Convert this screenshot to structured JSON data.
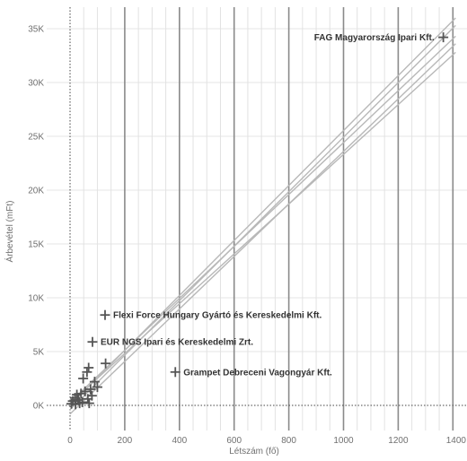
{
  "chart_data": {
    "type": "scatter",
    "title": "",
    "xlabel": "Létszám (fő)",
    "ylabel": "Árbevétel (mFt)",
    "xlim": [
      -80,
      1410
    ],
    "ylim": [
      -2200,
      36200
    ],
    "x_ticks": [
      {
        "value": 0,
        "label": "0"
      },
      {
        "value": 200,
        "label": "200"
      },
      {
        "value": 400,
        "label": "400"
      },
      {
        "value": 600,
        "label": "600"
      },
      {
        "value": 800,
        "label": "800"
      },
      {
        "value": 1000,
        "label": "1000"
      },
      {
        "value": 1200,
        "label": "1200"
      },
      {
        "value": 1400,
        "label": "1400"
      }
    ],
    "y_ticks": [
      {
        "value": 0,
        "label": "0K"
      },
      {
        "value": 5000,
        "label": "5K"
      },
      {
        "value": 10000,
        "label": "10K"
      },
      {
        "value": 15000,
        "label": "15K"
      },
      {
        "value": 20000,
        "label": "20K"
      },
      {
        "value": 25000,
        "label": "25K"
      },
      {
        "value": 30000,
        "label": "30K"
      },
      {
        "value": 35000,
        "label": "35K"
      }
    ],
    "grid": true,
    "marker": "plus",
    "points": [
      {
        "x": 1365,
        "y": 34200,
        "label": "FAG Magyarország Ipari Kft."
      },
      {
        "x": 128,
        "y": 8400,
        "label": "Flexi Force Hungary Gyártó és Kereskedelmi Kft."
      },
      {
        "x": 82,
        "y": 5900,
        "label": "EUR NGS Ipari és Kereskedelmi Zrt."
      },
      {
        "x": 385,
        "y": 3100,
        "label": "Grampet Debreceni Vagongyár Kft."
      },
      {
        "x": 130,
        "y": 3900,
        "label": ""
      },
      {
        "x": 68,
        "y": 3500,
        "label": ""
      },
      {
        "x": 62,
        "y": 3100,
        "label": ""
      },
      {
        "x": 48,
        "y": 2500,
        "label": ""
      },
      {
        "x": 90,
        "y": 2200,
        "label": ""
      },
      {
        "x": 100,
        "y": 1700,
        "label": ""
      },
      {
        "x": 75,
        "y": 1500,
        "label": ""
      },
      {
        "x": 55,
        "y": 1300,
        "label": ""
      },
      {
        "x": 40,
        "y": 1100,
        "label": ""
      },
      {
        "x": 25,
        "y": 1000,
        "label": ""
      },
      {
        "x": 18,
        "y": 700,
        "label": ""
      },
      {
        "x": 30,
        "y": 500,
        "label": ""
      },
      {
        "x": 10,
        "y": 400,
        "label": ""
      },
      {
        "x": 45,
        "y": 300,
        "label": ""
      },
      {
        "x": 65,
        "y": 600,
        "label": ""
      },
      {
        "x": 5,
        "y": 150,
        "label": ""
      },
      {
        "x": 35,
        "y": 200,
        "label": ""
      },
      {
        "x": 80,
        "y": 900,
        "label": ""
      },
      {
        "x": 20,
        "y": 100,
        "label": ""
      },
      {
        "x": 70,
        "y": 200,
        "label": ""
      }
    ],
    "trend_lines": [
      {
        "x": [
          0,
          1410
        ],
        "y": [
          0,
          36000
        ]
      },
      {
        "x": [
          0,
          1410
        ],
        "y": [
          -400,
          35300
        ]
      },
      {
        "x": [
          0,
          1410
        ],
        "y": [
          300,
          34300
        ]
      },
      {
        "x": [
          0,
          1410
        ],
        "y": [
          -800,
          33600
        ]
      },
      {
        "x": [
          0,
          1410
        ],
        "y": [
          200,
          32800
        ]
      }
    ]
  }
}
